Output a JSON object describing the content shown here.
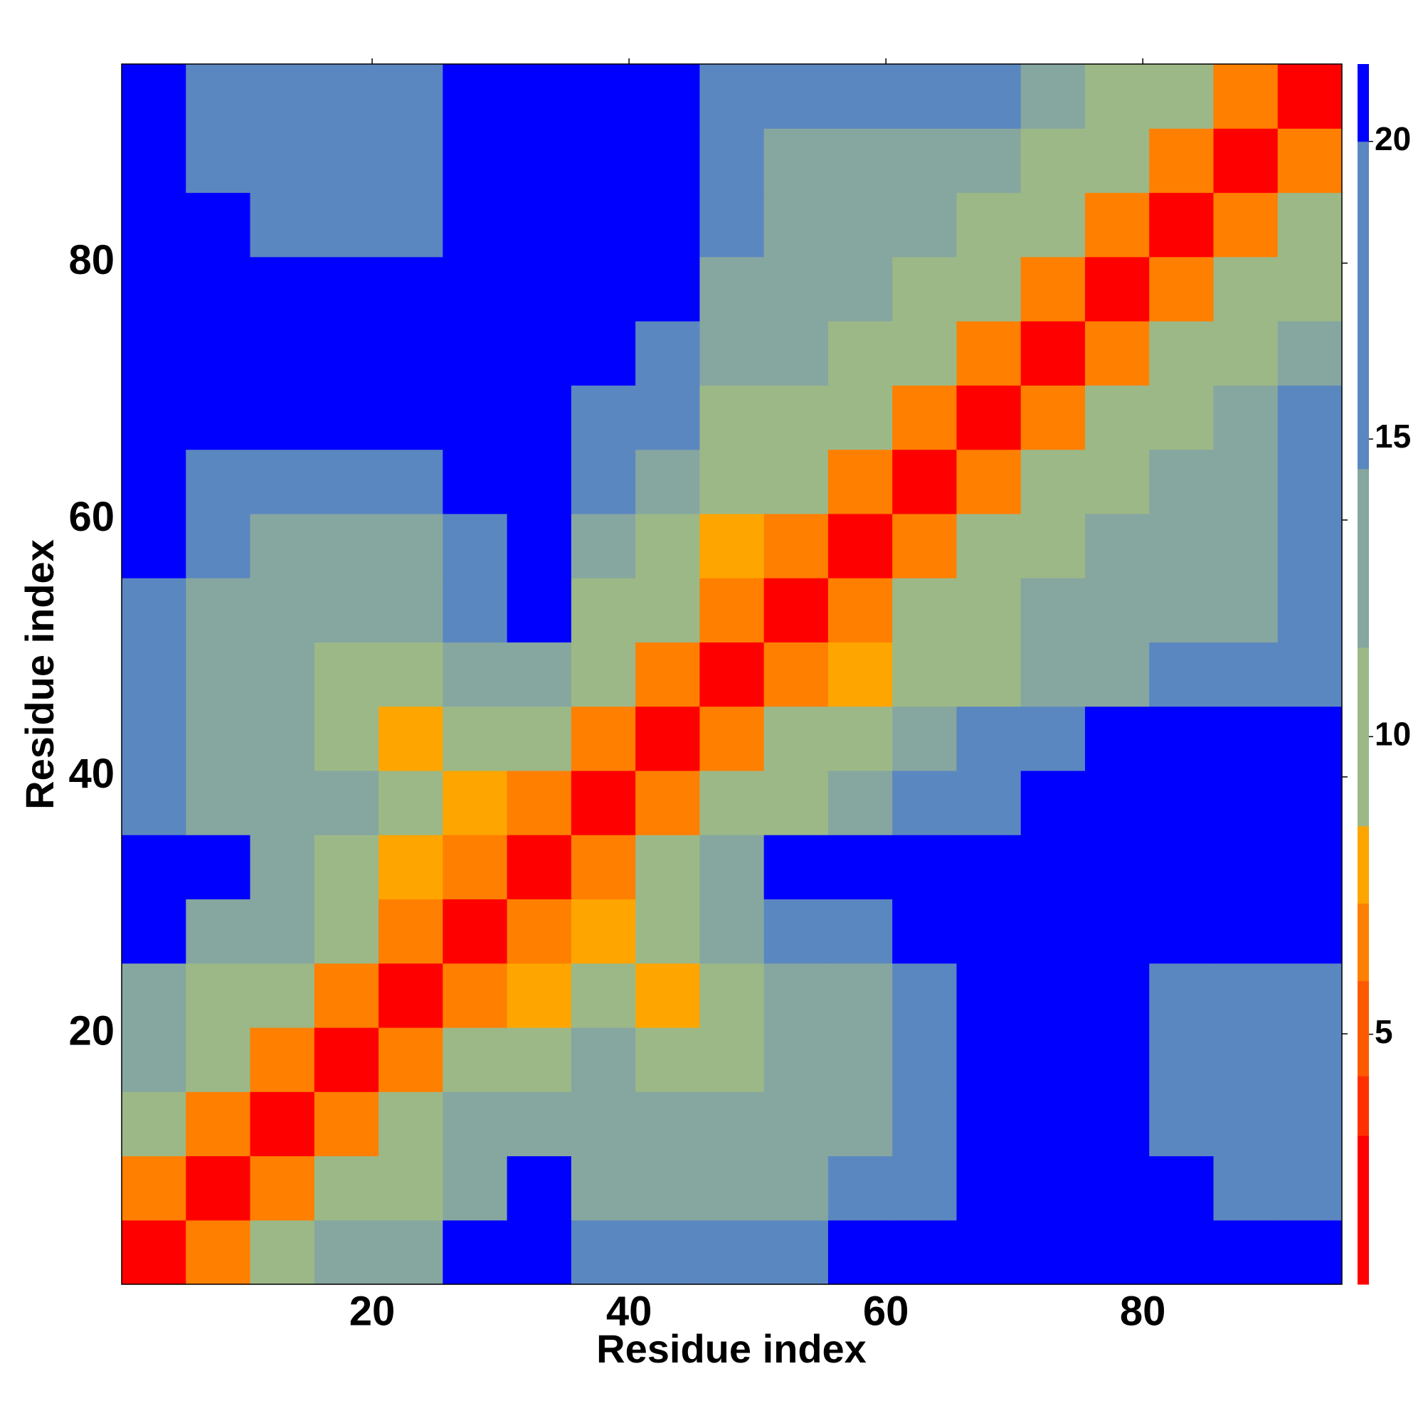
{
  "chart_data": {
    "type": "heatmap",
    "xlabel": "Residue index",
    "ylabel": "Residue index",
    "x_bins": [
      0.5,
      5.5,
      10.5,
      15.5,
      20.5,
      25.5,
      30.5,
      35.5,
      40.5,
      45.5,
      50.5,
      55.5,
      60.5,
      65.5,
      70.5,
      75.5,
      80.5,
      85.5,
      90.5,
      95.5
    ],
    "y_bins": [
      0.5,
      5.5,
      10.5,
      15.5,
      20.5,
      25.5,
      30.5,
      35.5,
      40.5,
      45.5,
      50.5,
      55.5,
      60.5,
      65.5,
      70.5,
      75.5,
      80.5,
      85.5,
      90.5,
      95.5
    ],
    "xlim": [
      0.5,
      95.5
    ],
    "ylim": [
      0.5,
      95.5
    ],
    "xticks": [
      20,
      40,
      60,
      80
    ],
    "yticks": [
      20,
      40,
      60,
      80
    ],
    "values": [
      [
        3,
        6,
        10,
        12,
        14,
        21,
        21,
        17,
        17,
        18,
        19,
        21,
        21,
        21,
        21,
        21,
        21,
        21,
        21
      ],
      [
        6,
        3,
        6,
        9,
        11,
        14,
        21,
        14,
        13,
        13,
        14,
        15,
        18,
        21,
        21,
        21,
        21,
        17,
        19
      ],
      [
        10,
        6,
        3,
        6,
        10,
        12,
        14,
        13,
        12,
        12,
        12,
        14,
        16,
        21,
        21,
        21,
        16,
        15,
        16
      ],
      [
        12,
        9,
        6,
        3,
        6,
        9,
        11,
        12,
        11,
        11,
        12,
        14,
        17,
        21,
        21,
        21,
        19,
        17,
        19
      ],
      [
        14,
        11,
        10,
        6,
        3,
        6,
        8,
        10,
        8,
        10,
        12,
        14,
        17,
        21,
        21,
        21,
        17,
        17,
        19
      ],
      [
        21,
        14,
        12,
        9,
        6,
        3,
        6,
        8,
        11,
        14,
        16,
        18,
        21,
        21,
        21,
        21,
        21,
        21,
        21
      ],
      [
        21,
        21,
        14,
        11,
        8,
        6,
        3,
        6,
        10,
        14,
        21,
        21,
        21,
        21,
        21,
        21,
        21,
        21,
        21
      ],
      [
        17,
        14,
        13,
        12,
        10,
        8,
        6,
        3,
        6,
        9,
        11,
        14,
        17,
        19,
        21,
        21,
        21,
        21,
        21
      ],
      [
        17,
        13,
        12,
        11,
        8,
        11,
        10,
        6,
        3,
        6,
        9,
        11,
        13,
        15,
        17,
        21,
        21,
        21,
        21
      ],
      [
        18,
        13,
        12,
        11,
        10,
        14,
        14,
        9,
        6,
        3,
        6,
        8,
        10,
        11,
        12,
        14,
        16,
        16,
        17
      ],
      [
        19,
        14,
        12,
        12,
        12,
        16,
        21,
        11,
        9,
        6,
        3,
        6,
        9,
        11,
        12,
        13,
        13,
        14,
        16
      ],
      [
        21,
        15,
        14,
        14,
        14,
        18,
        21,
        14,
        11,
        8,
        6,
        3,
        6,
        9,
        11,
        13,
        12,
        12,
        15
      ],
      [
        21,
        18,
        16,
        17,
        17,
        21,
        21,
        17,
        13,
        10,
        9,
        6,
        3,
        6,
        9,
        11,
        12,
        13,
        16
      ],
      [
        21,
        21,
        21,
        21,
        21,
        21,
        21,
        19,
        15,
        11,
        11,
        9,
        6,
        3,
        6,
        9,
        11,
        14,
        16
      ],
      [
        21,
        21,
        21,
        21,
        21,
        21,
        21,
        21,
        17,
        12,
        12,
        11,
        9,
        6,
        3,
        6,
        9,
        11,
        14
      ],
      [
        21,
        21,
        21,
        21,
        21,
        21,
        21,
        21,
        21,
        14,
        13,
        13,
        11,
        9,
        6,
        3,
        6,
        9,
        11
      ],
      [
        21,
        21,
        16,
        19,
        17,
        21,
        21,
        21,
        21,
        16,
        13,
        12,
        12,
        11,
        9,
        6,
        3,
        6,
        9
      ],
      [
        21,
        17,
        15,
        17,
        17,
        21,
        21,
        21,
        21,
        16,
        14,
        12,
        13,
        14,
        11,
        9,
        6,
        3,
        6
      ],
      [
        21,
        19,
        16,
        19,
        19,
        21,
        21,
        21,
        21,
        17,
        16,
        15,
        16,
        16,
        14,
        11,
        9,
        6,
        3
      ]
    ],
    "colorbar": {
      "clim": [
        0.8,
        21.3
      ],
      "ticks": [
        5,
        10,
        15,
        20
      ],
      "bounds": [
        0.8,
        3.3,
        4.3,
        5.9,
        7.2,
        8.5,
        11.5,
        14.5,
        20,
        21.3
      ],
      "colors": [
        "#ff0000",
        "#ff3000",
        "#ff5a00",
        "#ff7f00",
        "#ffa500",
        "#9cb887",
        "#86a6a0",
        "#5b87c0",
        "#0000ff"
      ]
    }
  }
}
